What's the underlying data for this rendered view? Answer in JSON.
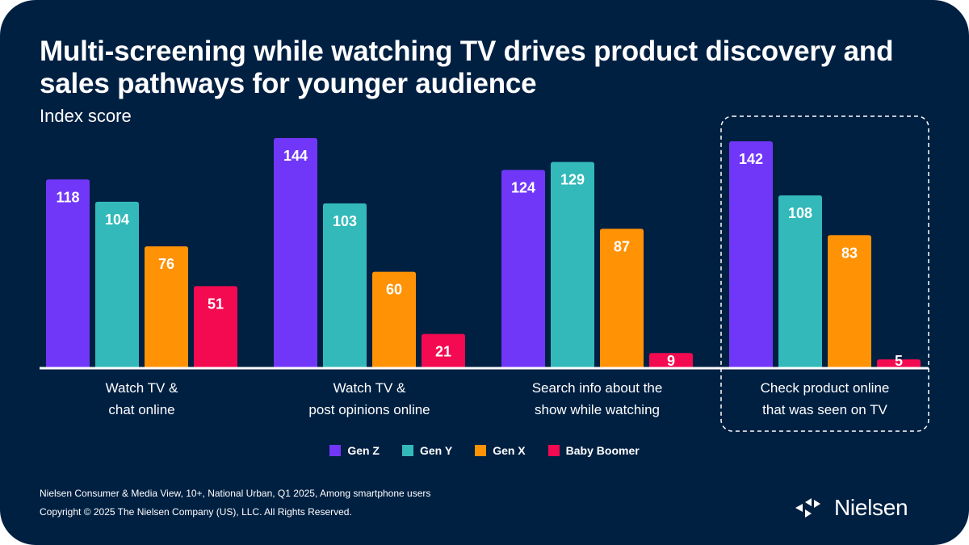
{
  "header": {
    "title": "Multi-screening while watching TV drives product discovery and sales pathways for younger audience",
    "subtitle": "Index score"
  },
  "colors": {
    "background": "#002042",
    "gen_z": "#7137F9",
    "gen_y": "#33B9B9",
    "gen_x": "#FF9205",
    "baby_boomer": "#F30A50",
    "axis": "#FFFFFF"
  },
  "chart_data": {
    "type": "bar",
    "title": "Multi-screening while watching TV drives product discovery and sales pathways for younger audience",
    "ylabel": "Index score",
    "xlabel": "",
    "ylim": [
      0,
      150
    ],
    "grid": false,
    "legend_position": "bottom-center",
    "categories": [
      "Watch TV & chat online",
      "Watch TV & post opinions online",
      "Search info about the show while watching",
      "Check product online that was seen on TV"
    ],
    "category_lines": [
      [
        "Watch TV &",
        "chat online"
      ],
      [
        "Watch TV &",
        "post opinions online"
      ],
      [
        "Search info about the",
        "show while watching"
      ],
      [
        "Check product online",
        "that was seen on TV"
      ]
    ],
    "highlighted_category": 3,
    "series": [
      {
        "name": "Gen Z",
        "color": "#7137F9",
        "values": [
          118,
          144,
          124,
          142
        ]
      },
      {
        "name": "Gen Y",
        "color": "#33B9B9",
        "values": [
          104,
          103,
          129,
          108
        ]
      },
      {
        "name": "Gen X",
        "color": "#FF9205",
        "values": [
          76,
          60,
          87,
          83
        ]
      },
      {
        "name": "Baby Boomer",
        "color": "#F30A50",
        "values": [
          51,
          21,
          9,
          5
        ]
      }
    ]
  },
  "legend": {
    "items": [
      {
        "label": "Gen Z",
        "color": "#7137F9"
      },
      {
        "label": "Gen Y",
        "color": "#33B9B9"
      },
      {
        "label": "Gen X",
        "color": "#FF9205"
      },
      {
        "label": "Baby Boomer",
        "color": "#F30A50"
      }
    ]
  },
  "footer": {
    "source": "Nielsen Consumer & Media View, 10+, National Urban, Q1 2025, Among smartphone users",
    "copyright": "Copyright © 2025 The Nielsen Company (US), LLC. All Rights Reserved.",
    "logo_text": "Nielsen",
    "logo_icon": "nielsen-arrows-icon"
  }
}
